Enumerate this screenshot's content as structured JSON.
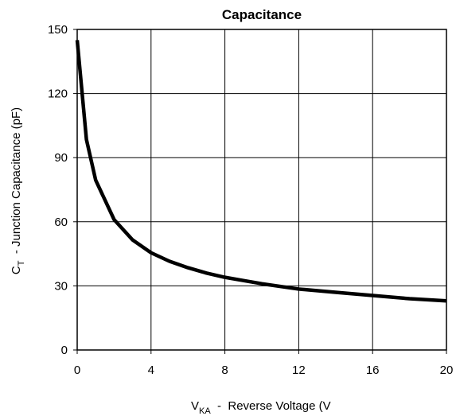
{
  "chart_data": {
    "type": "line",
    "title": "Capacitance",
    "xlabel": {
      "main": "V",
      "sub": "KA",
      "rest": "  -  Reverse Voltage (V"
    },
    "ylabel": {
      "main": "C",
      "sub": "T",
      "rest": "  - Junction Capacitance (pF)"
    },
    "x": [
      0,
      0.5,
      1,
      2,
      3,
      4,
      5,
      6,
      7,
      8,
      9,
      10,
      12,
      14,
      16,
      18,
      20
    ],
    "y": [
      145,
      98.5,
      79.5,
      61,
      51.5,
      45.5,
      41.5,
      38.5,
      36,
      34,
      32.5,
      31,
      28.5,
      27,
      25.5,
      24,
      23
    ],
    "color": "#000000",
    "xlim": [
      0,
      20
    ],
    "xticks": [
      0,
      4,
      8,
      12,
      16,
      20
    ],
    "ylim": [
      0,
      150
    ],
    "yticks": [
      0,
      30,
      60,
      90,
      120,
      150
    ],
    "grid": true
  }
}
